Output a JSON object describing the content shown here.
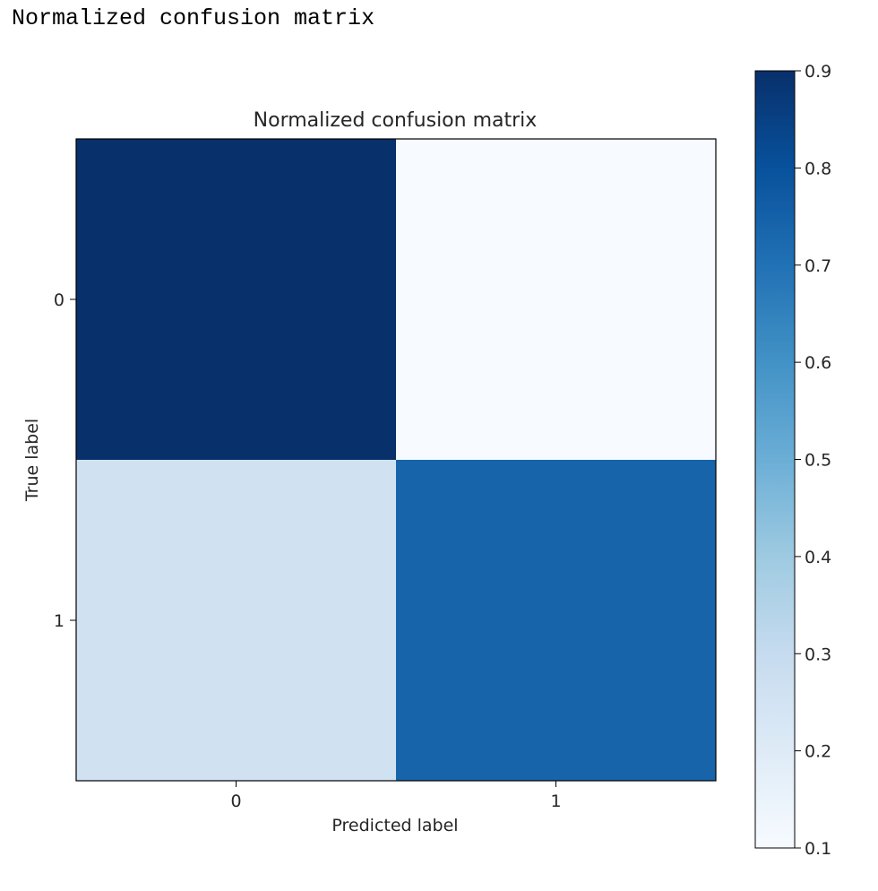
{
  "output_header": "Normalized confusion matrix",
  "chart_data": {
    "type": "heatmap",
    "title": "Normalized confusion matrix",
    "xlabel": "Predicted label",
    "ylabel": "True label",
    "x_categories": [
      "0",
      "1"
    ],
    "y_categories": [
      "0",
      "1"
    ],
    "values": [
      [
        0.9,
        0.1
      ],
      [
        0.26,
        0.74
      ]
    ],
    "colormap": "Blues",
    "colorbar": {
      "range": [
        0.1,
        0.9
      ],
      "ticks": [
        "0.1",
        "0.2",
        "0.3",
        "0.4",
        "0.5",
        "0.6",
        "0.7",
        "0.8",
        "0.9"
      ]
    },
    "grid": false
  }
}
